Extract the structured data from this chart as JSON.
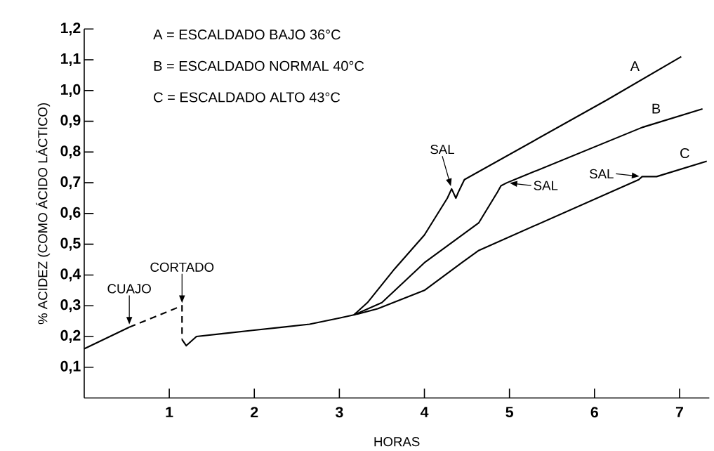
{
  "chart_data": {
    "type": "line",
    "xlabel": "HORAS",
    "ylabel": "% ACIDEZ (COMO ÁCIDO LÁCTICO)",
    "xlim": [
      0,
      7.35
    ],
    "ylim": [
      0,
      1.2
    ],
    "xticks": [
      1,
      2,
      3,
      4,
      5,
      6,
      7
    ],
    "yticks": [
      {
        "value": 0.1,
        "label": "0,1"
      },
      {
        "value": 0.2,
        "label": "0,2"
      },
      {
        "value": 0.3,
        "label": "0,3"
      },
      {
        "value": 0.4,
        "label": "0,4"
      },
      {
        "value": 0.5,
        "label": "0,5"
      },
      {
        "value": 0.6,
        "label": "0,6"
      },
      {
        "value": 0.7,
        "label": "0,7"
      },
      {
        "value": 0.8,
        "label": "0,8"
      },
      {
        "value": 0.9,
        "label": "0,9"
      },
      {
        "value": 1.0,
        "label": "1,0"
      },
      {
        "value": 1.1,
        "label": "1,1"
      },
      {
        "value": 1.2,
        "label": "1,2"
      }
    ],
    "marker": "none",
    "series": [
      {
        "color": "#000000",
        "line_style": "solid",
        "x": [
          0,
          0.53
        ],
        "values": [
          0.16,
          0.23
        ]
      },
      {
        "color": "#000000",
        "line_style": "dashed",
        "x": [
          0.53,
          1.15,
          1.15
        ],
        "values": [
          0.23,
          0.3,
          0.19
        ]
      },
      {
        "name": "A",
        "color": "#000000",
        "line_style": "solid",
        "x": [
          1.15,
          1.2,
          1.32,
          1.65,
          1.98,
          2.32,
          2.65,
          3.0,
          3.17,
          3.33,
          3.65,
          4.0,
          4.27,
          4.32,
          4.37,
          4.4,
          4.47,
          6.15,
          7.02
        ],
        "values": [
          0.19,
          0.17,
          0.2,
          0.21,
          0.22,
          0.23,
          0.24,
          0.26,
          0.27,
          0.31,
          0.42,
          0.53,
          0.65,
          0.68,
          0.65,
          0.67,
          0.71,
          0.97,
          1.11
        ]
      },
      {
        "name": "B",
        "color": "#000000",
        "line_style": "solid",
        "x": [
          3.17,
          3.5,
          4.0,
          4.64,
          4.86,
          4.9,
          4.97,
          6.56,
          7.27
        ],
        "values": [
          0.27,
          0.31,
          0.44,
          0.57,
          0.67,
          0.69,
          0.7,
          0.88,
          0.94
        ]
      },
      {
        "name": "C",
        "color": "#000000",
        "line_style": "solid",
        "x": [
          3.17,
          3.45,
          4.0,
          4.44,
          4.64,
          6.52,
          6.56,
          6.73,
          7.32
        ],
        "values": [
          0.27,
          0.29,
          0.35,
          0.44,
          0.48,
          0.71,
          0.72,
          0.72,
          0.77
        ]
      }
    ],
    "annotations": [
      "A = ESCALDADO BAJO 36°C",
      "B = ESCALDADO NORMAL 40°C",
      "C = ESCALDADO ALTO 43°C",
      {
        "text": "CUAJO",
        "x": 0.53,
        "y": 0.23
      },
      {
        "text": "CORTADO",
        "x": 1.15,
        "y": 0.3
      },
      {
        "text": "SAL",
        "x": 4.32,
        "y": 0.68
      },
      {
        "text": "SAL",
        "x": 4.97,
        "y": 0.7
      },
      {
        "text": "SAL",
        "x": 6.56,
        "y": 0.72
      }
    ]
  }
}
